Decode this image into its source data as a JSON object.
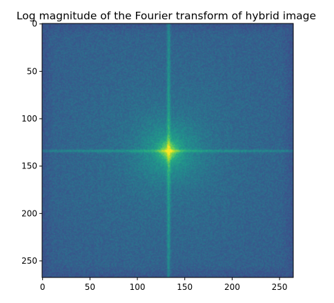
{
  "chart_data": {
    "type": "heatmap",
    "title": "Log magnitude of the Fourier transform of hybrid image",
    "colormap": "viridis",
    "image_width": 265,
    "image_height": 268,
    "spectrum_center": [
      133,
      134
    ],
    "x_ticks": [
      0,
      50,
      100,
      150,
      200,
      250
    ],
    "y_ticks": [
      0,
      50,
      100,
      150,
      200,
      250
    ],
    "xlim": [
      -0.5,
      264.5
    ],
    "ylim": [
      267.5,
      -0.5
    ],
    "grid": false,
    "legend": "none"
  }
}
